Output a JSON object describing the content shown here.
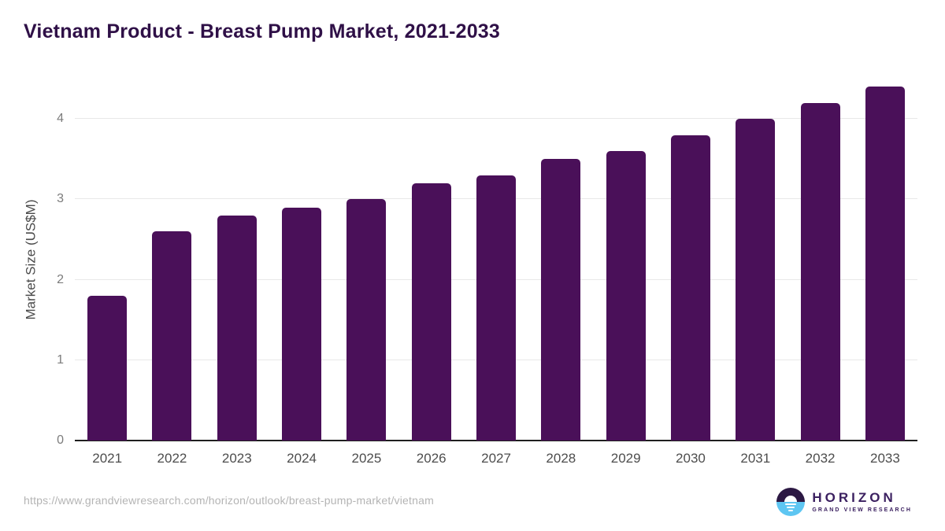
{
  "title": "Vietnam Product - Breast Pump Market, 2021-2033",
  "chart_data": {
    "type": "bar",
    "title": "Vietnam Product - Breast Pump Market, 2021-2033",
    "categories": [
      "2021",
      "2022",
      "2023",
      "2024",
      "2025",
      "2026",
      "2027",
      "2028",
      "2029",
      "2030",
      "2031",
      "2032",
      "2033"
    ],
    "values": [
      1.8,
      2.6,
      2.8,
      2.9,
      3.0,
      3.2,
      3.3,
      3.5,
      3.6,
      3.8,
      4.0,
      4.2,
      4.4
    ],
    "xlabel": "",
    "ylabel": "Market Size (US$M)",
    "ylim": [
      0,
      4.5
    ],
    "yticks": [
      "0",
      "1",
      "2",
      "3",
      "4"
    ],
    "grid": true,
    "legend": "none",
    "bar_color": "#4a1059"
  },
  "colors": {
    "title": "#2f1047",
    "bar": "#4a1059",
    "gridline": "#e8e8e8",
    "axis_line": "#1f1f1f",
    "x_tick": "#4d4d4d",
    "y_tick": "#7c7c7c",
    "url_text": "#b4b4b4",
    "logo_purple": "#2c1843",
    "logo_blue": "#5ec6f2"
  },
  "footer": {
    "source_url": "https://www.grandviewresearch.com/horizon/outlook/breast-pump-market/vietnam",
    "logo": {
      "name": "HORIZON",
      "subtitle": "GRAND VIEW RESEARCH"
    }
  }
}
